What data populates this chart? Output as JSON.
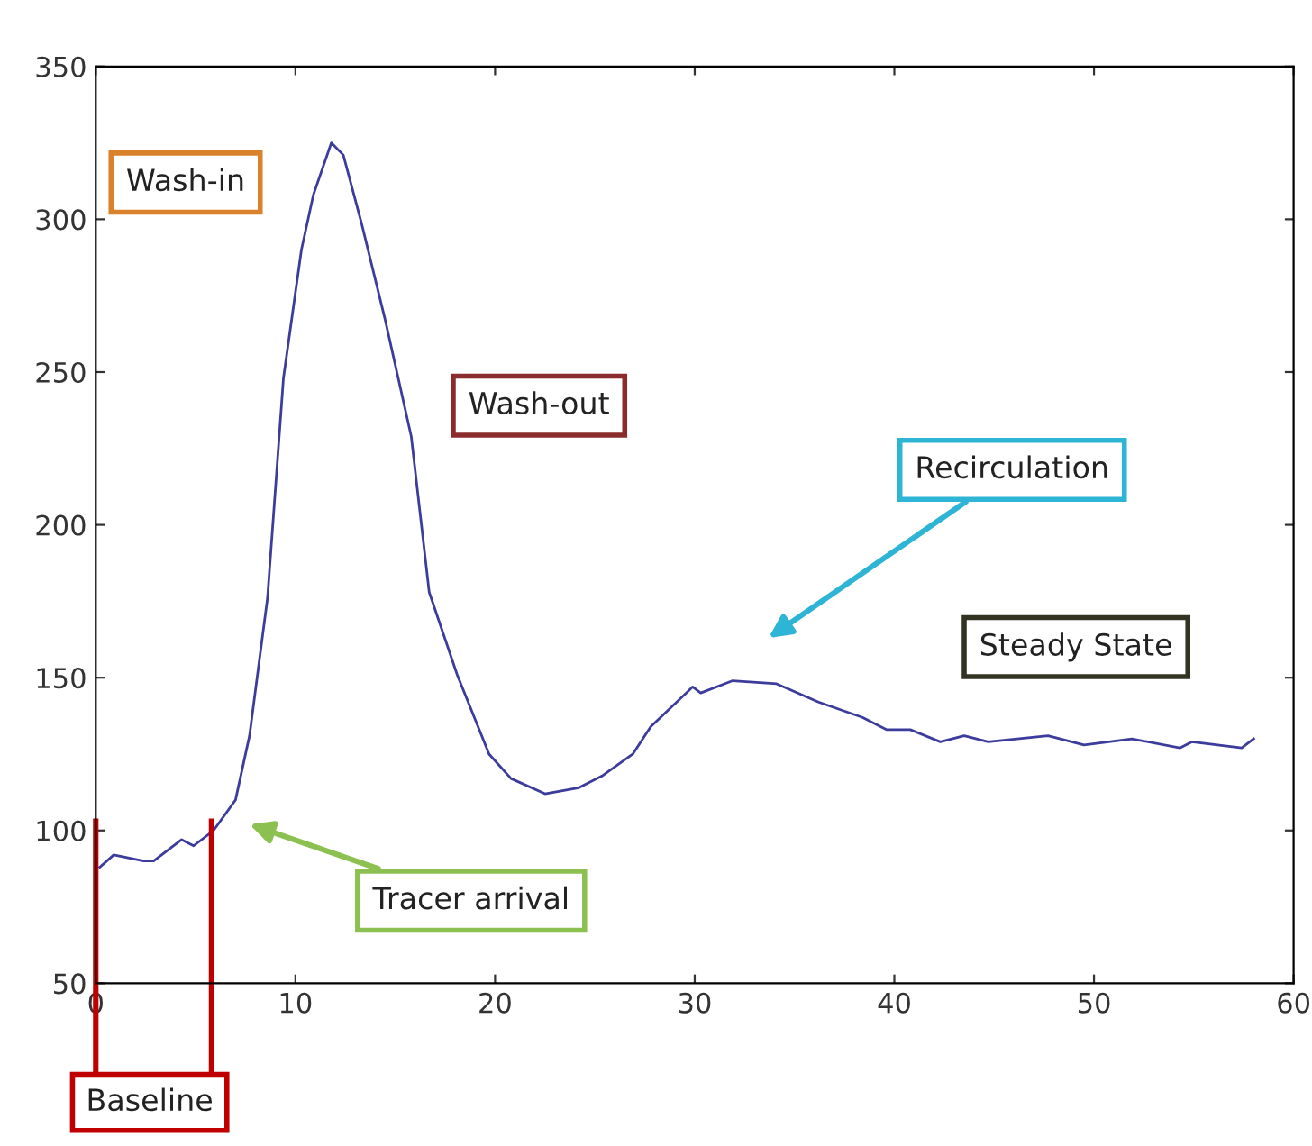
{
  "chart_data": {
    "type": "line",
    "series": [
      {
        "color": "#3c3c9c",
        "x": [
          0.2,
          0.9,
          2.4,
          2.9,
          4.3,
          4.9,
          5.9,
          7.0,
          7.7,
          8.3,
          8.6,
          9.4,
          10.3,
          10.9,
          11.8,
          12.4,
          13.3,
          14.5,
          15.8,
          16.7,
          18.1,
          19.7,
          20.8,
          22.5,
          24.2,
          25.4,
          26.9,
          27.8,
          29.9,
          30.3,
          31.9,
          34.1,
          36.2,
          38.4,
          39.6,
          40.8,
          42.3,
          43.5,
          44.7,
          47.7,
          49.5,
          51.9,
          54.3,
          54.9,
          57.4,
          58.0
        ],
        "values": [
          88,
          92,
          90,
          90,
          97,
          95,
          100,
          110,
          131,
          161,
          176,
          248,
          290,
          308,
          325,
          321,
          299,
          267,
          229,
          178,
          151,
          125,
          117,
          112,
          114,
          118,
          125,
          134,
          147,
          145,
          149,
          148,
          142,
          137,
          133,
          133,
          129,
          131,
          129,
          131,
          128,
          130,
          127,
          129,
          127,
          130
        ]
      }
    ],
    "xlim": [
      0,
      60
    ],
    "xticks": [
      0,
      10,
      20,
      30,
      40,
      50,
      60
    ],
    "ylim": [
      50,
      350
    ],
    "yticks": [
      50,
      100,
      150,
      200,
      250,
      300,
      350
    ],
    "grid": false,
    "legend": false,
    "marker": "none",
    "line_style": "solid",
    "ref_lines": [
      {
        "axis": "x",
        "value": 0,
        "label": "Baseline",
        "color": "#c00000"
      },
      {
        "axis": "x",
        "value": 5.8,
        "color": "#c00000"
      }
    ],
    "annotations": [
      "Wash-in",
      "Wash-out",
      "Recirculation",
      "Steady State",
      "Tracer arrival"
    ]
  }
}
